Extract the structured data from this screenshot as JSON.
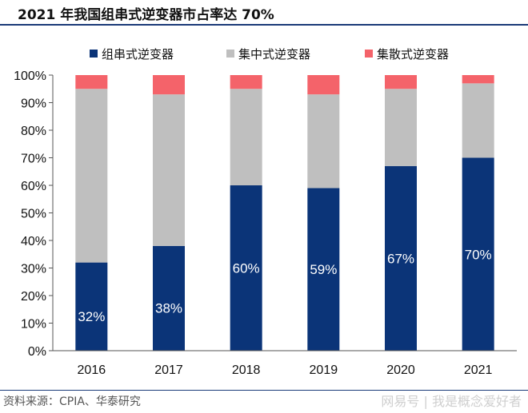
{
  "title": "2021 年我国组串式逆变器市占率达 70%",
  "source": "资料来源：CPIA、华泰研究",
  "watermark": "网易号 | 我是概念爱好者",
  "chart_data": {
    "type": "bar",
    "stacked": true,
    "categories": [
      "2016",
      "2017",
      "2018",
      "2019",
      "2020",
      "2021"
    ],
    "series": [
      {
        "name": "组串式逆变器",
        "color": "#0b3478",
        "values": [
          32,
          38,
          60,
          59,
          67,
          70
        ],
        "labels": [
          "32%",
          "38%",
          "60%",
          "59%",
          "67%",
          "70%"
        ]
      },
      {
        "name": "集中式逆变器",
        "color": "#bfbfbf",
        "values": [
          63,
          55,
          35,
          34,
          28,
          27
        ]
      },
      {
        "name": "集散式逆变器",
        "color": "#f4636a",
        "values": [
          5,
          7,
          5,
          7,
          5,
          3
        ]
      }
    ],
    "y_ticks": [
      "0%",
      "10%",
      "20%",
      "30%",
      "40%",
      "50%",
      "60%",
      "70%",
      "80%",
      "90%",
      "100%"
    ],
    "ylim": [
      0,
      100
    ],
    "legend_position": "top",
    "grid": false
  }
}
